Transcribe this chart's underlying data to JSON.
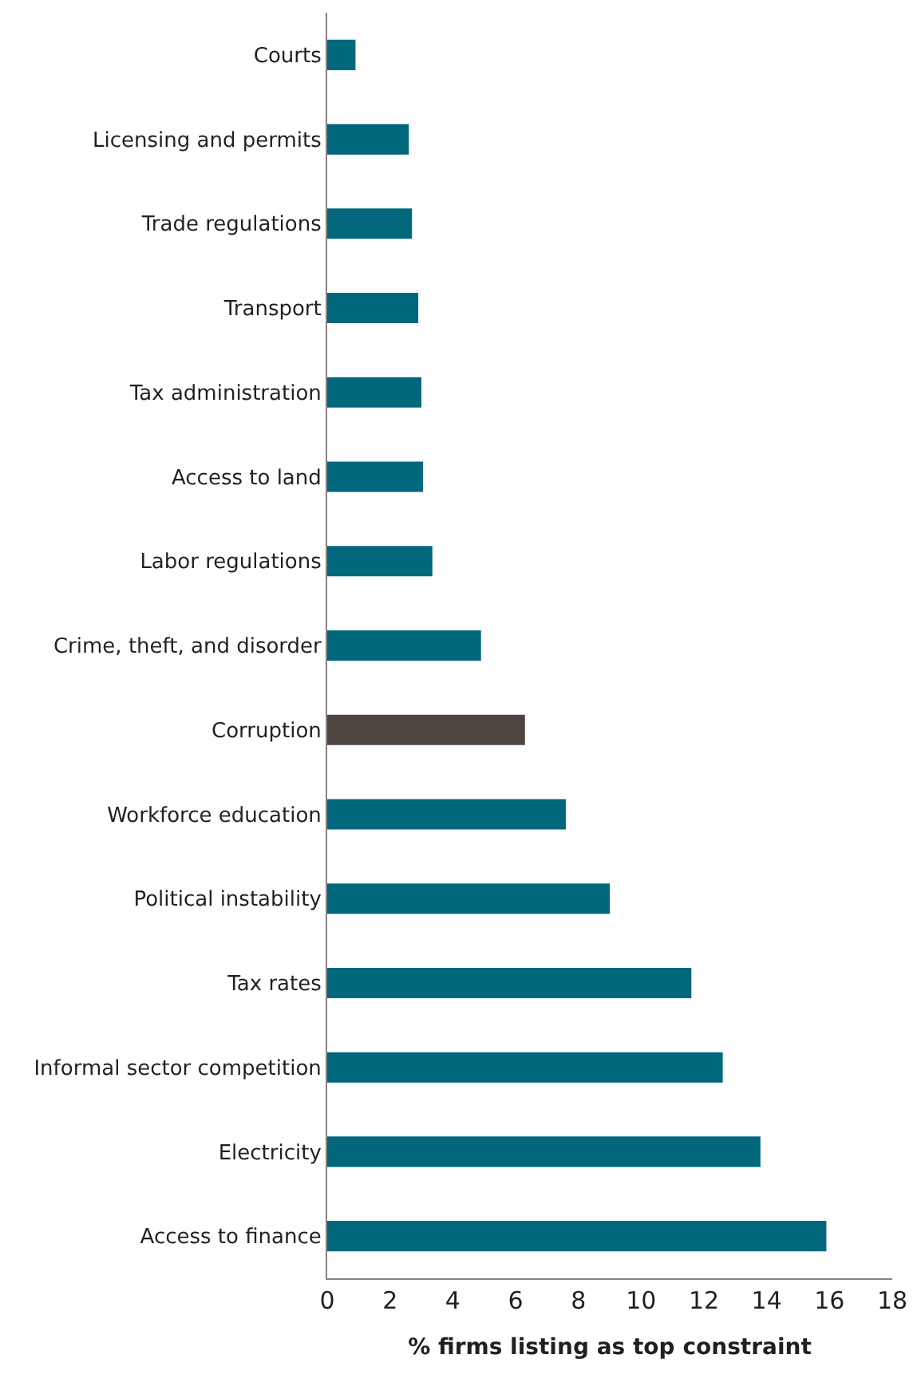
{
  "chart_data": {
    "type": "bar",
    "orientation": "horizontal",
    "xlabel": "% firms listing as top constraint",
    "categories": [
      "Courts",
      "Licensing and permits",
      "Trade regulations",
      "Transport",
      "Tax administration",
      "Access to land",
      "Labor regulations",
      "Crime, theft, and disorder",
      "Corruption",
      "Workforce education",
      "Political instability",
      "Tax rates",
      "Informal sector competition",
      "Electricity",
      "Access to finance"
    ],
    "values": [
      0.9,
      2.6,
      2.7,
      2.9,
      3.0,
      3.05,
      3.35,
      4.9,
      6.3,
      7.6,
      9.0,
      11.6,
      12.6,
      13.8,
      15.9
    ],
    "colors": [
      "#00677d",
      "#00677d",
      "#00677d",
      "#00677d",
      "#00677d",
      "#00677d",
      "#00677d",
      "#00677d",
      "#4e4540",
      "#00677d",
      "#00677d",
      "#00677d",
      "#00677d",
      "#00677d",
      "#00677d"
    ],
    "xlim": [
      0,
      18
    ],
    "xticks": [
      0,
      2,
      4,
      6,
      8,
      10,
      12,
      14,
      16,
      18
    ],
    "legend": false
  }
}
